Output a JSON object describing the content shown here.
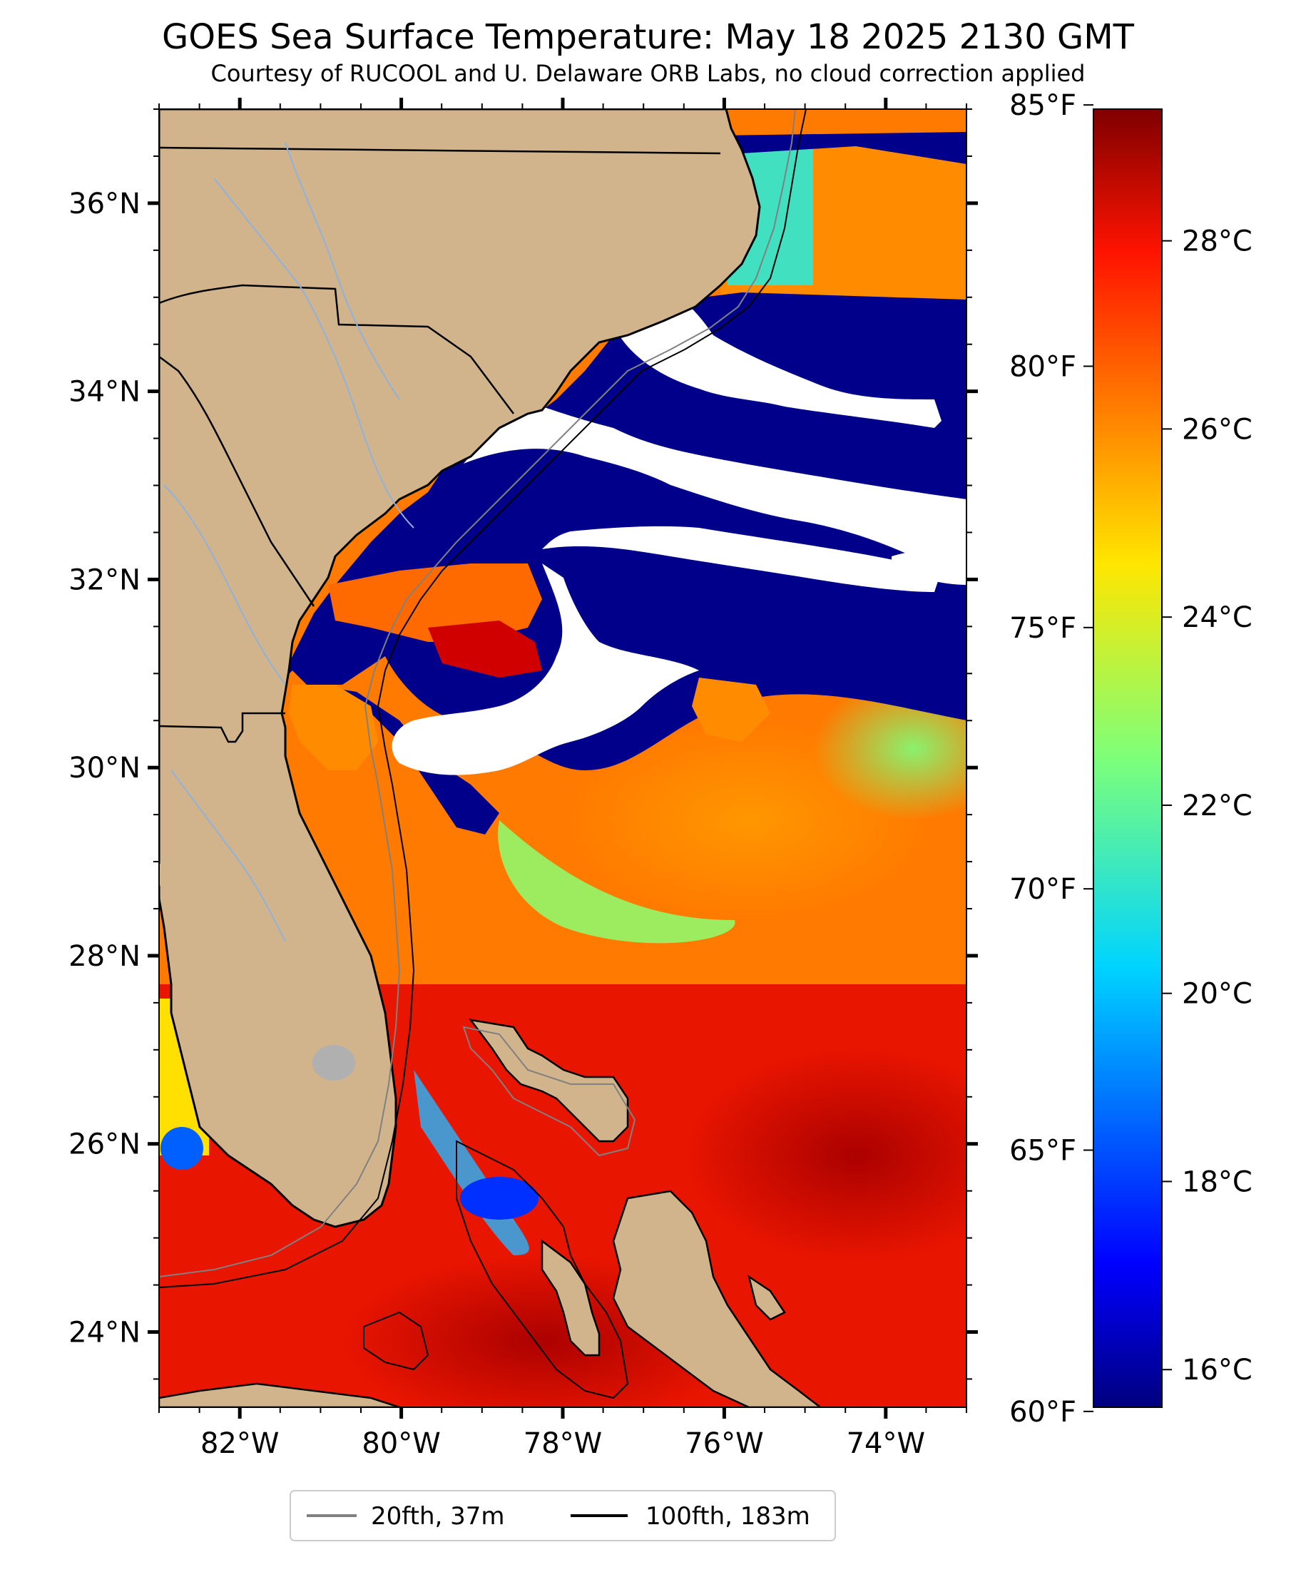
{
  "title": "GOES Sea Surface Temperature: May 18 2025 2130 GMT",
  "subtitle": "Courtesy of RUCOOL and U. Delaware ORB Labs, no cloud correction applied",
  "map": {
    "projection": "plate carree",
    "lon_range": [
      -83.0,
      -73.0
    ],
    "lat_range": [
      23.2,
      37.0
    ],
    "lat_tick_labels": [
      "36°N",
      "34°N",
      "32°N",
      "30°N",
      "28°N",
      "26°N",
      "24°N"
    ],
    "lat_tick_values": [
      36,
      34,
      32,
      30,
      28,
      26,
      24
    ],
    "lon_tick_labels": [
      "82°W",
      "80°W",
      "78°W",
      "76°W",
      "74°W"
    ],
    "lon_tick_values": [
      -82,
      -80,
      -78,
      -76,
      -74
    ],
    "colors": {
      "land": "#d2b48c",
      "cloud": "#ffffff",
      "lake": "#b0b0b0"
    }
  },
  "colorbar": {
    "colormap": "jet",
    "celsius_range": [
      15.6,
      29.4
    ],
    "celsius_labels": [
      "28°C",
      "26°C",
      "24°C",
      "22°C",
      "20°C",
      "18°C",
      "16°C"
    ],
    "celsius_values": [
      28,
      26,
      24,
      22,
      20,
      18,
      16
    ],
    "fahrenheit_labels": [
      "85°F",
      "80°F",
      "75°F",
      "70°F",
      "65°F",
      "60°F"
    ],
    "fahrenheit_values": [
      85,
      80,
      75,
      70,
      65,
      60
    ]
  },
  "legend": {
    "items": [
      {
        "label": "20fth, 37m",
        "color": "#808080"
      },
      {
        "label": "100fth, 183m",
        "color": "#000000"
      }
    ]
  }
}
